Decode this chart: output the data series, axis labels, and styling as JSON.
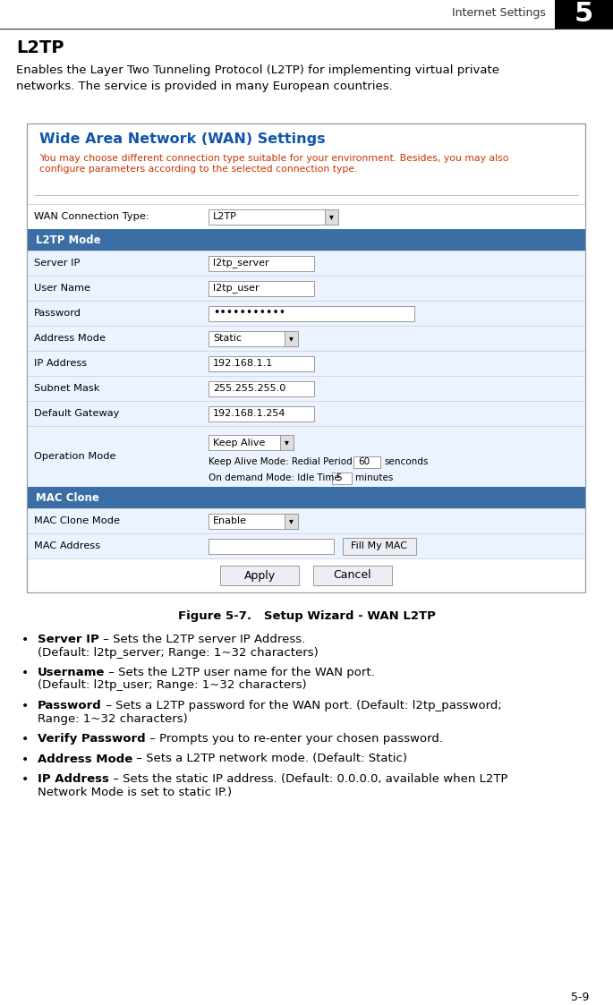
{
  "title_header": "Internet Settings",
  "chapter_num": "5",
  "section_title": "L2TP",
  "intro_text": "Enables the Layer Two Tunneling Protocol (L2TP) for implementing virtual private\nnetworks. The service is provided in many European countries.",
  "figure_caption": "Figure 5-7.   Setup Wizard - WAN L2TP",
  "wan_title": "Wide Area Network (WAN) Settings",
  "wan_subtitle_line1": "You may choose different connection type suitable for your environment. Besides, you may also",
  "wan_subtitle_line2": "configure parameters according to the selected connection type.",
  "wan_title_color": "#1155AA",
  "header_bg_color": "#3A6EA5",
  "header_text_color": "#FFFFFF",
  "row_bg_light": "#EAF3FF",
  "row_bg_white": "#FFFFFF",
  "border_color": "#BBBBBB",
  "page_bg": "#FFFFFF",
  "page_num": "5-9",
  "bullet_items": [
    {
      "bold": "Server IP",
      "rest": " – Sets the L2TP server IP Address.\n(Default: l2tp_server; Range: 1~32 characters)"
    },
    {
      "bold": "Username",
      "rest": " – Sets the L2TP user name for the WAN port.\n(Default: l2tp_user; Range: 1~32 characters)"
    },
    {
      "bold": "Password",
      "rest": " – Sets a L2TP password for the WAN port. (Default: l2tp_password;\nRange: 1~32 characters)"
    },
    {
      "bold": "Verify Password",
      "rest": " – Prompts you to re-enter your chosen password."
    },
    {
      "bold": "Address Mode",
      "rest": " – Sets a L2TP network mode. (Default: Static)"
    },
    {
      "bold": "IP Address",
      "rest": " – Sets the static IP address. (Default: 0.0.0.0, available when L2TP\nNetwork Mode is set to static IP.)"
    }
  ],
  "form_rows": [
    {
      "label": "WAN Connection Type:",
      "value": "L2TP",
      "type": "dropdown_wide",
      "header": false,
      "bg": "white"
    },
    {
      "label": "L2TP Mode",
      "value": "",
      "type": "header",
      "header": true,
      "bg": "blue"
    },
    {
      "label": "Server IP",
      "value": "l2tp_server",
      "type": "input",
      "header": false,
      "bg": "light"
    },
    {
      "label": "User Name",
      "value": "l2tp_user",
      "type": "input",
      "header": false,
      "bg": "light"
    },
    {
      "label": "Password",
      "value": "•••••••••••",
      "type": "input_wide",
      "header": false,
      "bg": "light"
    },
    {
      "label": "Address Mode",
      "value": "Static",
      "type": "dropdown",
      "header": false,
      "bg": "light"
    },
    {
      "label": "IP Address",
      "value": "192.168.1.1",
      "type": "input",
      "header": false,
      "bg": "light"
    },
    {
      "label": "Subnet Mask",
      "value": "255.255.255.0",
      "type": "input",
      "header": false,
      "bg": "light"
    },
    {
      "label": "Default Gateway",
      "value": "192.168.1.254",
      "type": "input",
      "header": false,
      "bg": "light"
    },
    {
      "label": "Operation Mode",
      "value": "Keep Alive",
      "type": "operation",
      "header": false,
      "bg": "light"
    },
    {
      "label": "MAC Clone",
      "value": "",
      "type": "header",
      "header": true,
      "bg": "blue"
    },
    {
      "label": "MAC Clone Mode",
      "value": "Enable",
      "type": "dropdown",
      "header": false,
      "bg": "light"
    },
    {
      "label": "MAC Address",
      "value": "",
      "type": "mac_address",
      "header": false,
      "bg": "light"
    }
  ]
}
